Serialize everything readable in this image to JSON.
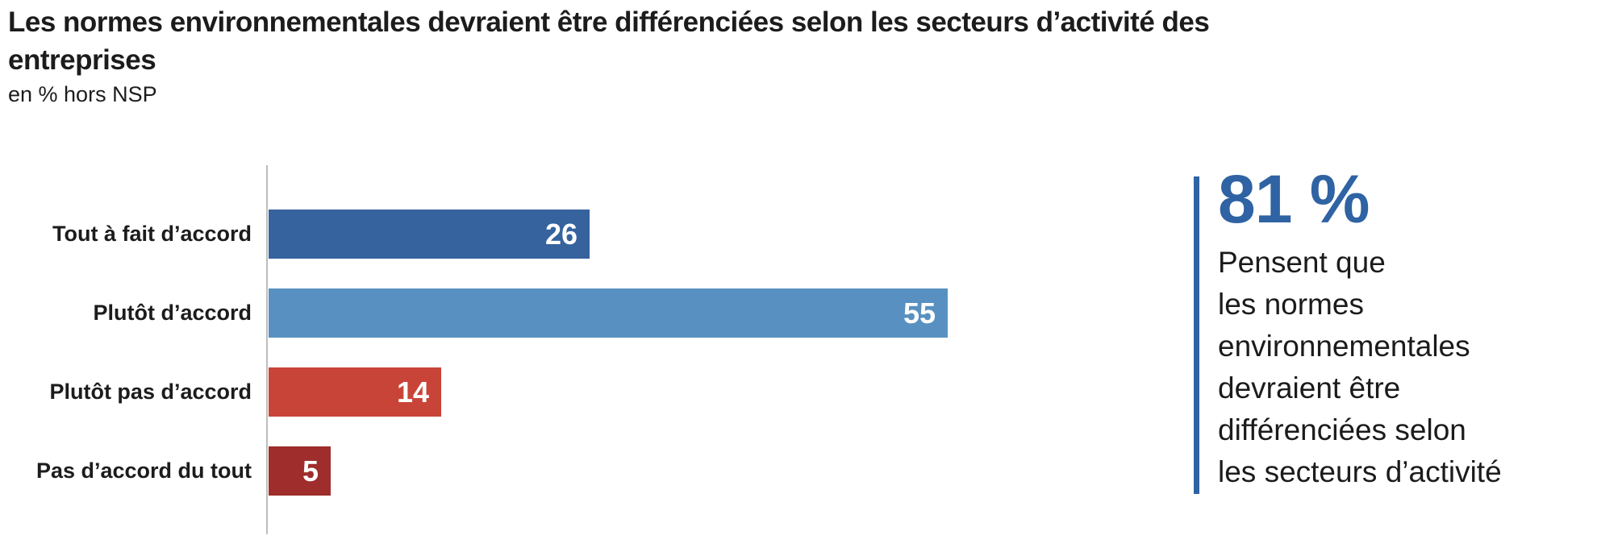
{
  "title": {
    "line1": "Les normes environnementales devraient être différenciées selon les secteurs d’activité des",
    "line2": "entreprises"
  },
  "subtitle": "en % hors NSP",
  "chart_data": {
    "type": "bar",
    "orientation": "horizontal",
    "categories": [
      "Tout à fait d’accord",
      "Plutôt d’accord",
      "Plutôt pas d’accord",
      "Pas d’accord du tout"
    ],
    "values": [
      26,
      55,
      14,
      5
    ],
    "colors": [
      "#36639E",
      "#5891C1",
      "#C94438",
      "#9E2D2B"
    ],
    "value_label_color": "#FFFFFF",
    "axis_color": "#BDBDBD",
    "title": "Les normes environnementales devraient être différenciées selon les secteurs d’activité des entreprises",
    "xlabel": "",
    "ylabel": "",
    "unit": "% hors NSP",
    "legend": "none",
    "grid": false
  },
  "summary": {
    "stat": "81 %",
    "accent_color": "#2F63A3",
    "lines": [
      "Pensent que",
      "les normes",
      "environnementales",
      "devraient être",
      "différenciées selon",
      "les secteurs d’activité"
    ]
  }
}
